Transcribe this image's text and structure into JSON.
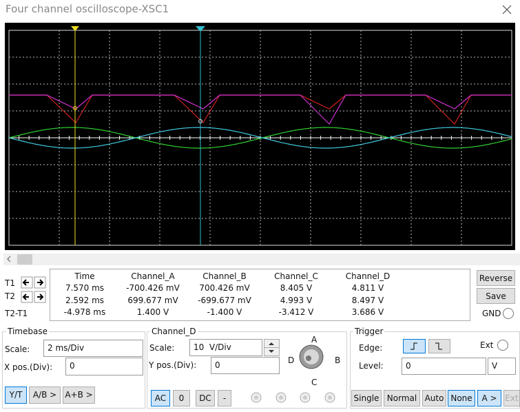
{
  "title": "Four channel oscilloscope-XSC1",
  "readings": {
    "columns": [
      "Time",
      "Channel_A",
      "Channel_B",
      "Channel_C",
      "Channel_D"
    ],
    "rows": [
      {
        "label": "T1",
        "values": [
          "7.570 ms",
          "-700.426 mV",
          "700.426 mV",
          "8.405 V",
          "4.811 V"
        ]
      },
      {
        "label": "T2",
        "values": [
          "2.592 ms",
          "699.677 mV",
          "-699.677 mV",
          "4.993 V",
          "8.497 V"
        ]
      },
      {
        "label": "T2-T1",
        "values": [
          "-4.978 ms",
          "1.400 V",
          "-1.400 V",
          "-3.412 V",
          "3.686 V"
        ]
      }
    ],
    "reverse": "Reverse",
    "save": "Save",
    "gnd": "GND"
  },
  "timebase": {
    "title": "Timebase",
    "scale_label": "Scale:",
    "scale": "2 ms/Div",
    "xpos_label": "X pos.(Div):",
    "xpos": "0",
    "modes": [
      "Y/T",
      "A/B >",
      "A+B >"
    ]
  },
  "channel": {
    "title": "Channel_D",
    "scale_label": "Scale:",
    "scale": "10  V/Div",
    "ypos_label": "Y pos.(Div):",
    "ypos": "0",
    "knob_labels": [
      "A",
      "B",
      "C",
      "D"
    ],
    "coupling": [
      "AC",
      "0",
      "DC",
      "-"
    ]
  },
  "trigger": {
    "title": "Trigger",
    "edge_label": "Edge:",
    "ext": "Ext",
    "level_label": "Level:",
    "level": "0",
    "level_unit": "V",
    "modes": [
      "Single",
      "Normal",
      "Auto",
      "None",
      "A >",
      "Ext"
    ]
  }
}
